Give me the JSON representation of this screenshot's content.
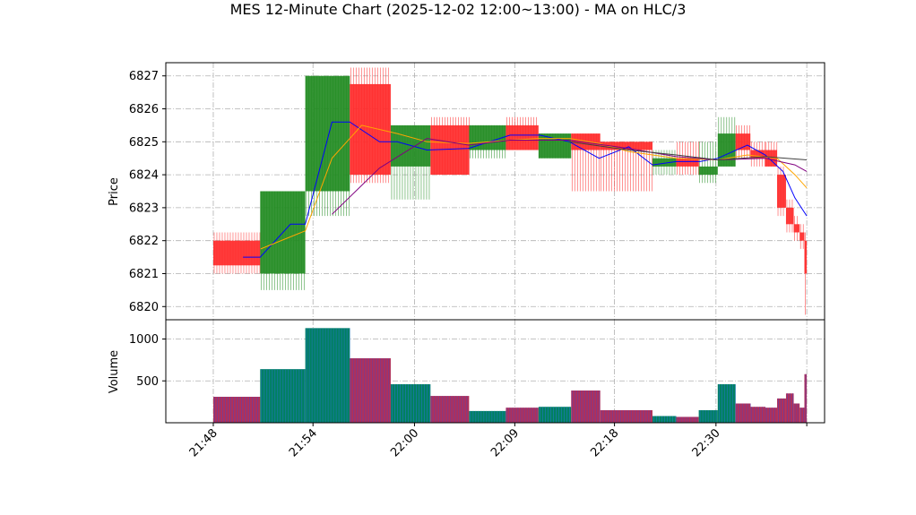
{
  "chart_data": {
    "type": "candlestick-ohlc-with-volume",
    "title": "MES 12-Minute Chart (2025-12-02 12:00~13:00) - MA on HLC/3",
    "price_panel": {
      "ylabel": "Price",
      "ylim": [
        6819.6,
        6827.4
      ],
      "yticks": [
        6820,
        6821,
        6822,
        6823,
        6824,
        6825,
        6826,
        6827
      ],
      "grid": true
    },
    "volume_panel": {
      "ylabel": "Volume",
      "ylim": [
        0,
        1230
      ],
      "yticks": [
        500,
        1000
      ],
      "grid": true
    },
    "x_axis": {
      "xlim": [
        -0.08,
        1.03
      ],
      "tick_labels": [
        {
          "t": 0.0,
          "label": "21:48"
        },
        {
          "t": 0.168,
          "label": "21:54"
        },
        {
          "t": 0.339,
          "label": "22:00"
        },
        {
          "t": 0.508,
          "label": "22:09"
        },
        {
          "t": 0.676,
          "label": "22:18"
        },
        {
          "t": 0.847,
          "label": "22:30"
        },
        {
          "t": 1.0,
          "label": ""
        }
      ]
    },
    "bars": [
      {
        "t0": 0.0,
        "t1": 0.079,
        "open": 6822.0,
        "close": 6821.25,
        "high": 6822.25,
        "low": 6821.0,
        "up": false,
        "volume": 310
      },
      {
        "t0": 0.079,
        "t1": 0.155,
        "open": 6821.0,
        "close": 6823.5,
        "high": 6823.5,
        "low": 6820.5,
        "up": true,
        "volume": 640
      },
      {
        "t0": 0.155,
        "t1": 0.23,
        "open": 6823.5,
        "close": 6827.0,
        "high": 6827.0,
        "low": 6822.75,
        "up": true,
        "volume": 1130
      },
      {
        "t0": 0.23,
        "t1": 0.299,
        "open": 6826.75,
        "close": 6824.0,
        "high": 6827.25,
        "low": 6823.75,
        "up": false,
        "volume": 770
      },
      {
        "t0": 0.299,
        "t1": 0.366,
        "open": 6824.25,
        "close": 6825.5,
        "high": 6825.5,
        "low": 6823.25,
        "up": true,
        "volume": 460
      },
      {
        "t0": 0.366,
        "t1": 0.431,
        "open": 6825.5,
        "close": 6824.0,
        "high": 6825.75,
        "low": 6824.0,
        "up": false,
        "volume": 320
      },
      {
        "t0": 0.431,
        "t1": 0.493,
        "open": 6824.75,
        "close": 6825.5,
        "high": 6825.5,
        "low": 6824.5,
        "up": true,
        "volume": 140
      },
      {
        "t0": 0.493,
        "t1": 0.548,
        "open": 6825.5,
        "close": 6824.75,
        "high": 6825.75,
        "low": 6824.75,
        "up": false,
        "volume": 180
      },
      {
        "t0": 0.548,
        "t1": 0.603,
        "open": 6824.5,
        "close": 6825.25,
        "high": 6825.25,
        "low": 6824.5,
        "up": true,
        "volume": 190
      },
      {
        "t0": 0.603,
        "t1": 0.652,
        "open": 6825.25,
        "close": 6824.75,
        "high": 6825.25,
        "low": 6823.5,
        "up": false,
        "volume": 385
      },
      {
        "t0": 0.652,
        "t1": 0.74,
        "open": 6825.0,
        "close": 6824.75,
        "high": 6825.0,
        "low": 6823.5,
        "up": false,
        "volume": 150
      },
      {
        "t0": 0.74,
        "t1": 0.78,
        "open": 6824.25,
        "close": 6824.5,
        "high": 6824.75,
        "low": 6824.0,
        "up": true,
        "volume": 80
      },
      {
        "t0": 0.78,
        "t1": 0.818,
        "open": 6824.5,
        "close": 6824.25,
        "high": 6825.0,
        "low": 6824.0,
        "up": false,
        "volume": 70
      },
      {
        "t0": 0.818,
        "t1": 0.85,
        "open": 6824.0,
        "close": 6824.25,
        "high": 6825.0,
        "low": 6823.75,
        "up": true,
        "volume": 150
      },
      {
        "t0": 0.85,
        "t1": 0.88,
        "open": 6824.25,
        "close": 6825.25,
        "high": 6825.75,
        "low": 6824.25,
        "up": true,
        "volume": 460
      },
      {
        "t0": 0.88,
        "t1": 0.905,
        "open": 6825.25,
        "close": 6824.75,
        "high": 6825.5,
        "low": 6824.5,
        "up": false,
        "volume": 230
      },
      {
        "t0": 0.905,
        "t1": 0.93,
        "open": 6824.75,
        "close": 6824.5,
        "high": 6825.0,
        "low": 6824.25,
        "up": false,
        "volume": 190
      },
      {
        "t0": 0.93,
        "t1": 0.95,
        "open": 6824.75,
        "close": 6824.25,
        "high": 6825.0,
        "low": 6824.25,
        "up": false,
        "volume": 180
      },
      {
        "t0": 0.95,
        "t1": 0.965,
        "open": 6824.0,
        "close": 6823.0,
        "high": 6824.25,
        "low": 6822.75,
        "up": false,
        "volume": 290
      },
      {
        "t0": 0.965,
        "t1": 0.978,
        "open": 6823.0,
        "close": 6822.5,
        "high": 6823.25,
        "low": 6822.25,
        "up": false,
        "volume": 350
      },
      {
        "t0": 0.978,
        "t1": 0.988,
        "open": 6822.5,
        "close": 6822.25,
        "high": 6822.75,
        "low": 6822.0,
        "up": false,
        "volume": 230
      },
      {
        "t0": 0.988,
        "t1": 0.996,
        "open": 6822.25,
        "close": 6822.0,
        "high": 6822.5,
        "low": 6821.75,
        "up": false,
        "volume": 180
      },
      {
        "t0": 0.996,
        "t1": 1.0,
        "open": 6822.0,
        "close": 6821.0,
        "high": 6822.25,
        "low": 6819.75,
        "up": false,
        "volume": 580
      }
    ],
    "ma_series": [
      {
        "color": "#0000ff",
        "points": [
          [
            0.05,
            6821.5
          ],
          [
            0.079,
            6821.5
          ],
          [
            0.13,
            6822.5
          ],
          [
            0.155,
            6822.5
          ],
          [
            0.2,
            6825.6
          ],
          [
            0.23,
            6825.6
          ],
          [
            0.28,
            6825.0
          ],
          [
            0.31,
            6825.0
          ],
          [
            0.36,
            6824.75
          ],
          [
            0.43,
            6824.8
          ],
          [
            0.5,
            6825.2
          ],
          [
            0.55,
            6825.2
          ],
          [
            0.6,
            6825.0
          ],
          [
            0.65,
            6824.5
          ],
          [
            0.7,
            6824.85
          ],
          [
            0.74,
            6824.3
          ],
          [
            0.78,
            6824.4
          ],
          [
            0.82,
            6824.4
          ],
          [
            0.85,
            6824.5
          ],
          [
            0.9,
            6824.9
          ],
          [
            0.93,
            6824.6
          ],
          [
            0.96,
            6824.1
          ],
          [
            0.98,
            6823.3
          ],
          [
            1.0,
            6822.75
          ]
        ]
      },
      {
        "color": "#ffa500",
        "points": [
          [
            0.08,
            6821.75
          ],
          [
            0.155,
            6822.3
          ],
          [
            0.2,
            6824.5
          ],
          [
            0.25,
            6825.5
          ],
          [
            0.31,
            6825.25
          ],
          [
            0.36,
            6825.0
          ],
          [
            0.43,
            6824.95
          ],
          [
            0.5,
            6825.05
          ],
          [
            0.55,
            6825.1
          ],
          [
            0.6,
            6825.1
          ],
          [
            0.65,
            6824.95
          ],
          [
            0.7,
            6824.7
          ],
          [
            0.78,
            6824.5
          ],
          [
            0.85,
            6824.45
          ],
          [
            0.9,
            6824.6
          ],
          [
            0.95,
            6824.5
          ],
          [
            0.98,
            6824.0
          ],
          [
            1.0,
            6823.6
          ]
        ]
      },
      {
        "color": "#800080",
        "points": [
          [
            0.2,
            6822.8
          ],
          [
            0.28,
            6824.2
          ],
          [
            0.36,
            6825.1
          ],
          [
            0.43,
            6824.9
          ],
          [
            0.5,
            6825.05
          ],
          [
            0.6,
            6825.05
          ],
          [
            0.7,
            6824.8
          ],
          [
            0.78,
            6824.55
          ],
          [
            0.85,
            6824.45
          ],
          [
            0.93,
            6824.5
          ],
          [
            0.98,
            6824.3
          ],
          [
            1.0,
            6824.1
          ]
        ]
      },
      {
        "color": "#404040",
        "points": [
          [
            0.6,
            6825.0
          ],
          [
            0.7,
            6824.75
          ],
          [
            0.78,
            6824.6
          ],
          [
            0.85,
            6824.45
          ],
          [
            0.93,
            6824.55
          ],
          [
            1.0,
            6824.45
          ]
        ]
      }
    ],
    "colors": {
      "up": "#228b22",
      "down": "#ff2a2a",
      "volume_up_fill": "#008060",
      "volume_up_edge": "#1f77b4",
      "volume_down_fill": "#b0305a",
      "volume_down_edge": "#6a3fa0"
    }
  }
}
